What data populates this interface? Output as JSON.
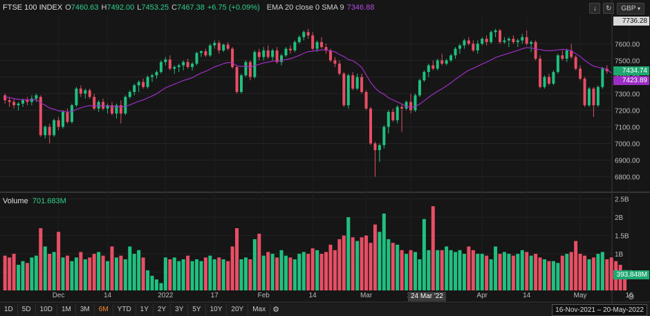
{
  "legend": {
    "symbol": "FTSE 100 INDEX",
    "o_label": "O",
    "o_value": "7460.63",
    "h_label": "H",
    "h_value": "7492.00",
    "l_label": "L",
    "l_value": "7453.25",
    "c_label": "C",
    "c_value": "7467.38",
    "change": "+6.75 (+0.09%)",
    "ema_label": "EMA 20 close 0 SMA 9",
    "ema_value": "7346.88"
  },
  "volume_legend": {
    "label": "Volume",
    "value": "701.683M"
  },
  "currency": "GBP",
  "icons": {
    "download": "download-icon",
    "refresh": "refresh-icon",
    "settings": "gear-icon"
  },
  "price_tags": {
    "top": "7736.28",
    "last": "7434.74",
    "ema": "7423.89"
  },
  "volume_tag": "393.848M",
  "crosshair_date": "24 Mar '22",
  "date_range": "16-Nov-2021 – 20-May-2022",
  "ranges": [
    "1D",
    "5D",
    "10D",
    "1M",
    "3M",
    "6M",
    "YTD",
    "1Y",
    "2Y",
    "3Y",
    "5Y",
    "10Y",
    "20Y",
    "Max"
  ],
  "active_range": "6M",
  "colors": {
    "up": "#20c080",
    "down": "#e84f64",
    "ema": "#a02ec8",
    "bg": "#161616"
  },
  "chart_data": {
    "type": "candlestick",
    "price_axis": {
      "ticks": [
        7600,
        7500,
        7400,
        7300,
        7200,
        7100,
        7000,
        6900,
        6800
      ],
      "range": [
        6740,
        7780
      ]
    },
    "volume_axis": {
      "ticks": [
        "2.5B",
        "2B",
        "1.5B",
        "1B",
        "500M"
      ],
      "range": [
        0,
        2.55
      ]
    },
    "x_labels": [
      {
        "label": "Dec",
        "i": 12
      },
      {
        "label": "14",
        "i": 23
      },
      {
        "label": "2022",
        "i": 36
      },
      {
        "label": "17",
        "i": 47
      },
      {
        "label": "Feb",
        "i": 58
      },
      {
        "label": "14",
        "i": 69
      },
      {
        "label": "Mar",
        "i": 81
      },
      {
        "label": "14",
        "i": 91
      },
      {
        "label": "Apr",
        "i": 107
      },
      {
        "label": "14",
        "i": 117
      },
      {
        "label": "May",
        "i": 129
      },
      {
        "label": "16",
        "i": 140
      }
    ],
    "candles": [
      {
        "o": 7290,
        "h": 7300,
        "l": 7240,
        "c": 7260
      },
      {
        "o": 7260,
        "h": 7280,
        "l": 7220,
        "c": 7250
      },
      {
        "o": 7250,
        "h": 7270,
        "l": 7210,
        "c": 7230
      },
      {
        "o": 7230,
        "h": 7250,
        "l": 7200,
        "c": 7240
      },
      {
        "o": 7240,
        "h": 7270,
        "l": 7220,
        "c": 7260
      },
      {
        "o": 7260,
        "h": 7280,
        "l": 7230,
        "c": 7250
      },
      {
        "o": 7250,
        "h": 7290,
        "l": 7230,
        "c": 7270
      },
      {
        "o": 7270,
        "h": 7300,
        "l": 7250,
        "c": 7290
      },
      {
        "o": 7280,
        "h": 7290,
        "l": 7040,
        "c": 7050
      },
      {
        "o": 7050,
        "h": 7110,
        "l": 7030,
        "c": 7100
      },
      {
        "o": 7100,
        "h": 7120,
        "l": 7000,
        "c": 7050
      },
      {
        "o": 7050,
        "h": 7150,
        "l": 7040,
        "c": 7140
      },
      {
        "o": 7140,
        "h": 7160,
        "l": 7080,
        "c": 7100
      },
      {
        "o": 7100,
        "h": 7200,
        "l": 7090,
        "c": 7190
      },
      {
        "o": 7190,
        "h": 7210,
        "l": 7120,
        "c": 7130
      },
      {
        "o": 7130,
        "h": 7240,
        "l": 7120,
        "c": 7230
      },
      {
        "o": 7230,
        "h": 7340,
        "l": 7220,
        "c": 7330
      },
      {
        "o": 7330,
        "h": 7350,
        "l": 7280,
        "c": 7300
      },
      {
        "o": 7300,
        "h": 7330,
        "l": 7270,
        "c": 7320
      },
      {
        "o": 7320,
        "h": 7330,
        "l": 7270,
        "c": 7280
      },
      {
        "o": 7280,
        "h": 7300,
        "l": 7200,
        "c": 7210
      },
      {
        "o": 7210,
        "h": 7260,
        "l": 7190,
        "c": 7250
      },
      {
        "o": 7250,
        "h": 7270,
        "l": 7200,
        "c": 7210
      },
      {
        "o": 7210,
        "h": 7240,
        "l": 7180,
        "c": 7230
      },
      {
        "o": 7230,
        "h": 7250,
        "l": 7170,
        "c": 7180
      },
      {
        "o": 7180,
        "h": 7240,
        "l": 7150,
        "c": 7230
      },
      {
        "o": 7230,
        "h": 7260,
        "l": 7120,
        "c": 7180
      },
      {
        "o": 7180,
        "h": 7290,
        "l": 7170,
        "c": 7280
      },
      {
        "o": 7280,
        "h": 7320,
        "l": 7270,
        "c": 7310
      },
      {
        "o": 7310,
        "h": 7360,
        "l": 7290,
        "c": 7350
      },
      {
        "o": 7350,
        "h": 7380,
        "l": 7310,
        "c": 7370
      },
      {
        "o": 7370,
        "h": 7390,
        "l": 7330,
        "c": 7340
      },
      {
        "o": 7340,
        "h": 7410,
        "l": 7330,
        "c": 7400
      },
      {
        "o": 7400,
        "h": 7420,
        "l": 7370,
        "c": 7410
      },
      {
        "o": 7410,
        "h": 7440,
        "l": 7390,
        "c": 7430
      },
      {
        "o": 7430,
        "h": 7500,
        "l": 7420,
        "c": 7490
      },
      {
        "o": 7490,
        "h": 7520,
        "l": 7470,
        "c": 7505
      },
      {
        "o": 7505,
        "h": 7530,
        "l": 7440,
        "c": 7450
      },
      {
        "o": 7450,
        "h": 7470,
        "l": 7420,
        "c": 7460
      },
      {
        "o": 7460,
        "h": 7480,
        "l": 7430,
        "c": 7470
      },
      {
        "o": 7470,
        "h": 7500,
        "l": 7440,
        "c": 7490
      },
      {
        "o": 7490,
        "h": 7510,
        "l": 7450,
        "c": 7460
      },
      {
        "o": 7460,
        "h": 7490,
        "l": 7440,
        "c": 7480
      },
      {
        "o": 7480,
        "h": 7550,
        "l": 7470,
        "c": 7545
      },
      {
        "o": 7545,
        "h": 7560,
        "l": 7520,
        "c": 7555
      },
      {
        "o": 7555,
        "h": 7570,
        "l": 7520,
        "c": 7530
      },
      {
        "o": 7530,
        "h": 7600,
        "l": 7520,
        "c": 7590
      },
      {
        "o": 7590,
        "h": 7620,
        "l": 7570,
        "c": 7605
      },
      {
        "o": 7605,
        "h": 7620,
        "l": 7540,
        "c": 7560
      },
      {
        "o": 7560,
        "h": 7600,
        "l": 7550,
        "c": 7595
      },
      {
        "o": 7595,
        "h": 7610,
        "l": 7560,
        "c": 7570
      },
      {
        "o": 7570,
        "h": 7580,
        "l": 7450,
        "c": 7460
      },
      {
        "o": 7460,
        "h": 7470,
        "l": 7300,
        "c": 7310
      },
      {
        "o": 7310,
        "h": 7420,
        "l": 7300,
        "c": 7410
      },
      {
        "o": 7410,
        "h": 7500,
        "l": 7400,
        "c": 7490
      },
      {
        "o": 7490,
        "h": 7500,
        "l": 7380,
        "c": 7400
      },
      {
        "o": 7400,
        "h": 7560,
        "l": 7390,
        "c": 7550
      },
      {
        "o": 7550,
        "h": 7570,
        "l": 7500,
        "c": 7520
      },
      {
        "o": 7520,
        "h": 7580,
        "l": 7500,
        "c": 7560
      },
      {
        "o": 7560,
        "h": 7590,
        "l": 7510,
        "c": 7520
      },
      {
        "o": 7520,
        "h": 7570,
        "l": 7500,
        "c": 7560
      },
      {
        "o": 7560,
        "h": 7580,
        "l": 7480,
        "c": 7490
      },
      {
        "o": 7490,
        "h": 7540,
        "l": 7470,
        "c": 7530
      },
      {
        "o": 7530,
        "h": 7580,
        "l": 7520,
        "c": 7570
      },
      {
        "o": 7570,
        "h": 7590,
        "l": 7540,
        "c": 7560
      },
      {
        "o": 7560,
        "h": 7620,
        "l": 7550,
        "c": 7610
      },
      {
        "o": 7610,
        "h": 7650,
        "l": 7600,
        "c": 7640
      },
      {
        "o": 7640,
        "h": 7680,
        "l": 7620,
        "c": 7670
      },
      {
        "o": 7670,
        "h": 7690,
        "l": 7630,
        "c": 7650
      },
      {
        "o": 7650,
        "h": 7670,
        "l": 7560,
        "c": 7570
      },
      {
        "o": 7570,
        "h": 7620,
        "l": 7550,
        "c": 7610
      },
      {
        "o": 7610,
        "h": 7640,
        "l": 7570,
        "c": 7580
      },
      {
        "o": 7580,
        "h": 7600,
        "l": 7540,
        "c": 7560
      },
      {
        "o": 7560,
        "h": 7570,
        "l": 7490,
        "c": 7500
      },
      {
        "o": 7500,
        "h": 7520,
        "l": 7460,
        "c": 7480
      },
      {
        "o": 7480,
        "h": 7500,
        "l": 7410,
        "c": 7420
      },
      {
        "o": 7420,
        "h": 7430,
        "l": 7220,
        "c": 7230
      },
      {
        "o": 7230,
        "h": 7420,
        "l": 7210,
        "c": 7410
      },
      {
        "o": 7410,
        "h": 7430,
        "l": 7320,
        "c": 7330
      },
      {
        "o": 7330,
        "h": 7420,
        "l": 7320,
        "c": 7400
      },
      {
        "o": 7400,
        "h": 7420,
        "l": 7300,
        "c": 7310
      },
      {
        "o": 7310,
        "h": 7320,
        "l": 7200,
        "c": 7210
      },
      {
        "o": 7210,
        "h": 7220,
        "l": 6990,
        "c": 7000
      },
      {
        "o": 7000,
        "h": 7010,
        "l": 6800,
        "c": 6960
      },
      {
        "o": 6960,
        "h": 7000,
        "l": 6890,
        "c": 6990
      },
      {
        "o": 6990,
        "h": 7110,
        "l": 6970,
        "c": 7100
      },
      {
        "o": 7100,
        "h": 7200,
        "l": 7060,
        "c": 7190
      },
      {
        "o": 7190,
        "h": 7210,
        "l": 7130,
        "c": 7140
      },
      {
        "o": 7140,
        "h": 7230,
        "l": 7120,
        "c": 7220
      },
      {
        "o": 7220,
        "h": 7240,
        "l": 7070,
        "c": 7210
      },
      {
        "o": 7210,
        "h": 7260,
        "l": 7200,
        "c": 7250
      },
      {
        "o": 7250,
        "h": 7300,
        "l": 7180,
        "c": 7200
      },
      {
        "o": 7200,
        "h": 7300,
        "l": 7190,
        "c": 7290
      },
      {
        "o": 7290,
        "h": 7390,
        "l": 7280,
        "c": 7380
      },
      {
        "o": 7380,
        "h": 7440,
        "l": 7370,
        "c": 7430
      },
      {
        "o": 7430,
        "h": 7480,
        "l": 7400,
        "c": 7470
      },
      {
        "o": 7470,
        "h": 7500,
        "l": 7440,
        "c": 7450
      },
      {
        "o": 7450,
        "h": 7510,
        "l": 7440,
        "c": 7500
      },
      {
        "o": 7500,
        "h": 7540,
        "l": 7470,
        "c": 7480
      },
      {
        "o": 7480,
        "h": 7510,
        "l": 7470,
        "c": 7500
      },
      {
        "o": 7500,
        "h": 7540,
        "l": 7490,
        "c": 7530
      },
      {
        "o": 7530,
        "h": 7580,
        "l": 7510,
        "c": 7570
      },
      {
        "o": 7570,
        "h": 7600,
        "l": 7540,
        "c": 7590
      },
      {
        "o": 7590,
        "h": 7630,
        "l": 7570,
        "c": 7620
      },
      {
        "o": 7620,
        "h": 7640,
        "l": 7590,
        "c": 7600
      },
      {
        "o": 7600,
        "h": 7620,
        "l": 7550,
        "c": 7560
      },
      {
        "o": 7560,
        "h": 7620,
        "l": 7540,
        "c": 7600
      },
      {
        "o": 7600,
        "h": 7640,
        "l": 7590,
        "c": 7630
      },
      {
        "o": 7630,
        "h": 7650,
        "l": 7590,
        "c": 7610
      },
      {
        "o": 7610,
        "h": 7680,
        "l": 7600,
        "c": 7670
      },
      {
        "o": 7670,
        "h": 7690,
        "l": 7640,
        "c": 7680
      },
      {
        "o": 7680,
        "h": 7690,
        "l": 7600,
        "c": 7610
      },
      {
        "o": 7610,
        "h": 7640,
        "l": 7600,
        "c": 7620
      },
      {
        "o": 7620,
        "h": 7640,
        "l": 7580,
        "c": 7630
      },
      {
        "o": 7630,
        "h": 7650,
        "l": 7600,
        "c": 7610
      },
      {
        "o": 7610,
        "h": 7630,
        "l": 7580,
        "c": 7620
      },
      {
        "o": 7620,
        "h": 7660,
        "l": 7600,
        "c": 7640
      },
      {
        "o": 7640,
        "h": 7680,
        "l": 7590,
        "c": 7600
      },
      {
        "o": 7600,
        "h": 7620,
        "l": 7550,
        "c": 7610
      },
      {
        "o": 7610,
        "h": 7620,
        "l": 7500,
        "c": 7510
      },
      {
        "o": 7510,
        "h": 7530,
        "l": 7330,
        "c": 7340
      },
      {
        "o": 7340,
        "h": 7410,
        "l": 7330,
        "c": 7400
      },
      {
        "o": 7400,
        "h": 7420,
        "l": 7350,
        "c": 7360
      },
      {
        "o": 7360,
        "h": 7440,
        "l": 7350,
        "c": 7430
      },
      {
        "o": 7430,
        "h": 7540,
        "l": 7420,
        "c": 7530
      },
      {
        "o": 7530,
        "h": 7560,
        "l": 7500,
        "c": 7510
      },
      {
        "o": 7510,
        "h": 7570,
        "l": 7490,
        "c": 7560
      },
      {
        "o": 7560,
        "h": 7600,
        "l": 7510,
        "c": 7520
      },
      {
        "o": 7520,
        "h": 7530,
        "l": 7440,
        "c": 7450
      },
      {
        "o": 7450,
        "h": 7470,
        "l": 7380,
        "c": 7390
      },
      {
        "o": 7390,
        "h": 7400,
        "l": 7220,
        "c": 7230
      },
      {
        "o": 7230,
        "h": 7340,
        "l": 7220,
        "c": 7330
      },
      {
        "o": 7330,
        "h": 7340,
        "l": 7160,
        "c": 7230
      },
      {
        "o": 7230,
        "h": 7350,
        "l": 7220,
        "c": 7340
      },
      {
        "o": 7340,
        "h": 7460,
        "l": 7330,
        "c": 7450
      },
      {
        "o": 7450,
        "h": 7470,
        "l": 7420,
        "c": 7434.74
      }
    ],
    "ema": [
      7280,
      7276,
      7270,
      7266,
      7264,
      7262,
      7262,
      7265,
      7244,
      7230,
      7213,
      7206,
      7196,
      7195,
      7188,
      7192,
      7205,
      7214,
      7223,
      7228,
      7226,
      7228,
      7226,
      7226,
      7222,
      7223,
      7219,
      7224,
      7232,
      7243,
      7254,
      7262,
      7274,
      7286,
      7299,
      7318,
      7335,
      7346,
      7357,
      7368,
      7379,
      7387,
      7396,
      7410,
      7424,
      7434,
      7447,
      7461,
      7470,
      7480,
      7487,
      7485,
      7468,
      7463,
      7466,
      7459,
      7469,
      7476,
      7485,
      7489,
      7496,
      7495,
      7498,
      7505,
      7510,
      7519,
      7530,
      7543,
      7553,
      7555,
      7560,
      7562,
      7562,
      7557,
      7551,
      7535,
      7523,
      7505,
      7498,
      7480,
      7458,
      7412,
      7368,
      7334,
      7310,
      7296,
      7275,
      7262,
      7249,
      7238,
      7222,
      7218,
      7222,
      7237,
      7257,
      7278,
      7296,
      7314,
      7329,
      7346,
      7365,
      7386,
      7404,
      7424,
      7441,
      7452,
      7465,
      7478,
      7489,
      7503,
      7517,
      7526,
      7535,
      7543,
      7552,
      7560,
      7570,
      7577,
      7575,
      7568,
      7565,
      7560,
      7558,
      7560,
      7563,
      7566,
      7565,
      7557,
      7541,
      7523,
      7501,
      7481,
      7465,
      7459,
      7453,
      7446,
      7423.89
    ],
    "volume": [
      0.95,
      0.9,
      1.0,
      0.7,
      0.8,
      0.75,
      0.9,
      0.95,
      1.7,
      1.2,
      1.0,
      1.05,
      1.6,
      0.9,
      0.95,
      0.8,
      0.9,
      1.05,
      0.85,
      0.9,
      1.0,
      1.05,
      0.95,
      0.8,
      1.2,
      0.9,
      0.95,
      0.85,
      1.2,
      1.0,
      1.1,
      0.9,
      0.55,
      0.4,
      0.3,
      0.2,
      0.9,
      0.85,
      0.9,
      0.8,
      0.85,
      0.95,
      0.8,
      0.85,
      0.8,
      0.9,
      0.95,
      0.85,
      0.9,
      0.85,
      0.8,
      1.2,
      1.7,
      0.85,
      0.9,
      0.85,
      1.4,
      1.55,
      0.95,
      1.05,
      1.0,
      0.9,
      1.1,
      0.95,
      0.9,
      0.85,
      1.0,
      1.05,
      1.0,
      1.15,
      1.1,
      1.0,
      1.05,
      1.25,
      1.1,
      1.4,
      1.5,
      2.0,
      1.45,
      1.35,
      1.45,
      1.5,
      1.3,
      1.8,
      1.6,
      2.1,
      1.4,
      1.3,
      1.25,
      1.1,
      1.0,
      1.1,
      1.05,
      0.85,
      1.95,
      1.1,
      2.3,
      1.1,
      1.1,
      1.2,
      1.1,
      1.05,
      1.1,
      1.0,
      1.2,
      1.1,
      1.0,
      1.0,
      0.95,
      0.85,
      1.2,
      1.0,
      1.05,
      1.0,
      0.95,
      1.0,
      1.1,
      1.05,
      0.95,
      1.0,
      0.9,
      0.85,
      0.8,
      0.8,
      0.75,
      0.95,
      1.0,
      1.05,
      1.35,
      1.0,
      0.95,
      0.85,
      0.9,
      1.0,
      1.05,
      0.85,
      0.9,
      0.8,
      0.7,
      0.39
    ],
    "volume_up_down": "derived from candles"
  }
}
